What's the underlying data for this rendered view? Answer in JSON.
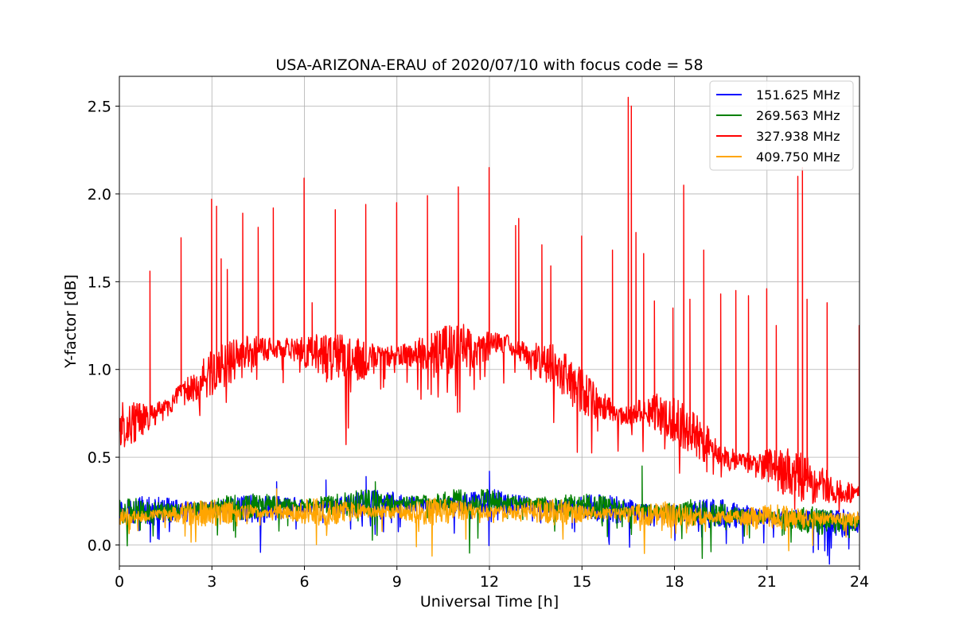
{
  "chart_data": {
    "type": "line",
    "title": "USA-ARIZONA-ERAU of 2020/07/10 with focus code = 58",
    "xlabel": "Universal Time [h]",
    "ylabel": "Y-factor [dB]",
    "xlim": [
      0,
      24
    ],
    "ylim": [
      -0.12,
      2.67
    ],
    "xticks": [
      0,
      3,
      6,
      9,
      12,
      15,
      18,
      21,
      24
    ],
    "xtick_labels": [
      "0",
      "3",
      "6",
      "9",
      "12",
      "15",
      "18",
      "21",
      "24"
    ],
    "yticks": [
      0.0,
      0.5,
      1.0,
      1.5,
      2.0,
      2.5
    ],
    "ytick_labels": [
      "0.0",
      "0.5",
      "1.0",
      "1.5",
      "2.0",
      "2.5"
    ],
    "grid": true,
    "legend_position": "upper-right",
    "series": [
      {
        "name": "151.625 MHz",
        "color": "#0000ff",
        "x": [
          0,
          1,
          2,
          3,
          4,
          5,
          6,
          7,
          8,
          9,
          10,
          11,
          12,
          13,
          14,
          15,
          16,
          17,
          18,
          19,
          20,
          21,
          22,
          23,
          24
        ],
        "values": [
          0.2,
          0.19,
          0.2,
          0.21,
          0.21,
          0.21,
          0.22,
          0.22,
          0.23,
          0.23,
          0.23,
          0.23,
          0.24,
          0.23,
          0.22,
          0.21,
          0.2,
          0.19,
          0.19,
          0.18,
          0.17,
          0.16,
          0.15,
          0.13,
          0.12
        ],
        "spikes": [
          [
            12.0,
            0.42
          ],
          [
            8.0,
            0.39
          ],
          [
            6.7,
            0.37
          ],
          [
            5.1,
            0.36
          ]
        ]
      },
      {
        "name": "269.563 MHz",
        "color": "#008000",
        "x": [
          0,
          1,
          2,
          3,
          4,
          5,
          6,
          7,
          8,
          9,
          10,
          11,
          12,
          13,
          14,
          15,
          16,
          17,
          18,
          19,
          20,
          21,
          22,
          23,
          24
        ],
        "values": [
          0.19,
          0.19,
          0.2,
          0.21,
          0.22,
          0.23,
          0.23,
          0.23,
          0.24,
          0.24,
          0.25,
          0.25,
          0.25,
          0.24,
          0.23,
          0.22,
          0.21,
          0.2,
          0.19,
          0.18,
          0.17,
          0.16,
          0.15,
          0.13,
          0.12
        ],
        "spikes": [
          [
            16.95,
            0.45
          ],
          [
            8.3,
            0.36
          ]
        ]
      },
      {
        "name": "327.938 MHz",
        "color": "#ff0000",
        "x": [
          0,
          0.5,
          1,
          1.5,
          2,
          2.5,
          3,
          3.5,
          4,
          4.5,
          5,
          5.5,
          6,
          7,
          8,
          9,
          10,
          11,
          12,
          12.5,
          13,
          13.5,
          14,
          14.5,
          15,
          15.5,
          16,
          16.5,
          17,
          17.5,
          18,
          18.5,
          19,
          19.5,
          20,
          20.5,
          21,
          21.5,
          22,
          22.5,
          23,
          23.5,
          24
        ],
        "values": [
          0.68,
          0.7,
          0.73,
          0.78,
          0.85,
          0.92,
          0.98,
          1.03,
          1.07,
          1.1,
          1.12,
          1.12,
          1.1,
          1.07,
          1.05,
          1.08,
          1.1,
          1.12,
          1.14,
          1.15,
          1.1,
          1.06,
          1.02,
          0.97,
          0.88,
          0.8,
          0.76,
          0.73,
          0.78,
          0.75,
          0.7,
          0.66,
          0.58,
          0.52,
          0.48,
          0.46,
          0.45,
          0.42,
          0.4,
          0.35,
          0.33,
          0.3,
          0.28
        ],
        "spikes": [
          [
            0.99,
            1.56
          ],
          [
            2.0,
            1.75
          ],
          [
            2.99,
            1.97
          ],
          [
            3.15,
            1.93
          ],
          [
            3.3,
            1.63
          ],
          [
            3.5,
            1.57
          ],
          [
            4.0,
            1.89
          ],
          [
            4.5,
            1.81
          ],
          [
            4.99,
            1.92
          ],
          [
            5.99,
            2.09
          ],
          [
            6.25,
            1.38
          ],
          [
            7.0,
            1.91
          ],
          [
            7.99,
            1.94
          ],
          [
            8.99,
            1.95
          ],
          [
            9.99,
            1.99
          ],
          [
            10.99,
            2.04
          ],
          [
            11.99,
            2.15
          ],
          [
            12.85,
            1.82
          ],
          [
            12.95,
            1.86
          ],
          [
            13.7,
            1.71
          ],
          [
            13.99,
            1.59
          ],
          [
            14.99,
            1.76
          ],
          [
            15.99,
            1.68
          ],
          [
            16.5,
            2.55
          ],
          [
            16.6,
            2.5
          ],
          [
            16.75,
            1.78
          ],
          [
            17.0,
            1.66
          ],
          [
            17.35,
            1.39
          ],
          [
            17.95,
            1.35
          ],
          [
            18.3,
            2.05
          ],
          [
            18.5,
            1.4
          ],
          [
            18.95,
            1.68
          ],
          [
            19.5,
            1.43
          ],
          [
            19.99,
            1.45
          ],
          [
            20.4,
            1.42
          ],
          [
            20.99,
            1.46
          ],
          [
            21.3,
            1.25
          ],
          [
            22.0,
            2.1
          ],
          [
            22.15,
            2.15
          ],
          [
            22.3,
            1.4
          ],
          [
            22.95,
            1.38
          ],
          [
            23.99,
            1.25
          ]
        ]
      },
      {
        "name": "409.750 MHz",
        "color": "#ffa500",
        "x": [
          0,
          1,
          2,
          3,
          4,
          5,
          6,
          7,
          8,
          9,
          10,
          11,
          12,
          13,
          14,
          15,
          16,
          17,
          18,
          19,
          20,
          21,
          22,
          23,
          24
        ],
        "values": [
          0.16,
          0.17,
          0.18,
          0.18,
          0.19,
          0.19,
          0.19,
          0.19,
          0.19,
          0.19,
          0.19,
          0.19,
          0.19,
          0.19,
          0.19,
          0.18,
          0.18,
          0.17,
          0.17,
          0.16,
          0.16,
          0.16,
          0.15,
          0.15,
          0.14
        ],
        "spikes": [
          [
            5.1,
            0.32
          ]
        ]
      }
    ]
  }
}
